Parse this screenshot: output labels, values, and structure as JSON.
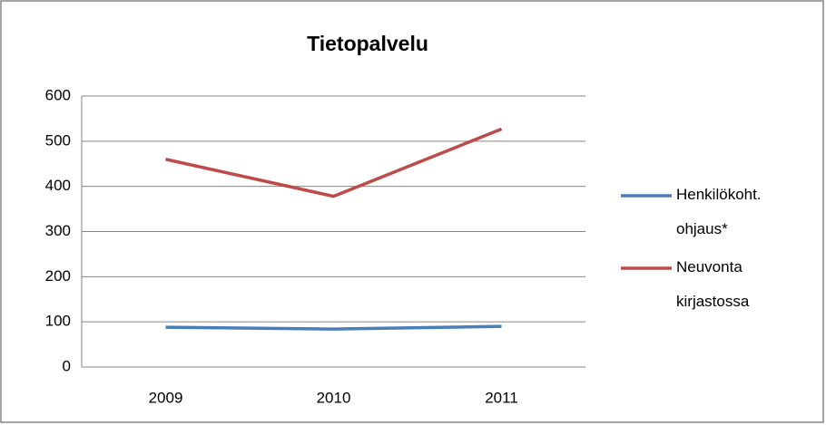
{
  "chart_data": {
    "type": "line",
    "title": "Tietopalvelu",
    "categories": [
      "2009",
      "2010",
      "2011"
    ],
    "series": [
      {
        "name": "Henkilökoht. ohjaus*",
        "color": "#4a7ebb",
        "values": [
          88,
          84,
          90
        ]
      },
      {
        "name": "Neuvonta kirjastossa",
        "color": "#be4b48",
        "values": [
          460,
          378,
          527
        ]
      }
    ],
    "ylim": [
      0,
      600
    ],
    "yticks": [
      0,
      100,
      200,
      300,
      400,
      500,
      600
    ],
    "grid": true,
    "legend": "right"
  }
}
